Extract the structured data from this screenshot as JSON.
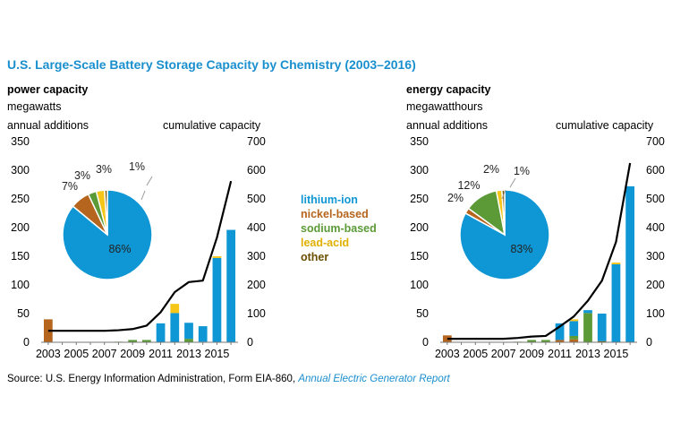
{
  "title": "U.S. Large-Scale Battery Storage Capacity by Chemistry (2003–2016)",
  "colors": {
    "lithium-ion": "#0f96d4",
    "nickel-based": "#b5651d",
    "sodium-based": "#5b9a36",
    "lead-acid": "#f5c518",
    "other": "#7a5a00",
    "line": "#000000"
  },
  "legend": {
    "items": [
      {
        "label": "lithium-ion",
        "color": "#0f96d4"
      },
      {
        "label": "nickel-based",
        "color": "#b5651d"
      },
      {
        "label": "sodium-based",
        "color": "#5b9a36"
      },
      {
        "label": "lead-acid",
        "color": "#f5c518"
      },
      {
        "label": "other",
        "color": "#7a5a00"
      }
    ]
  },
  "left": {
    "title": "power capacity",
    "unit": "megawatts",
    "left_axis_label": "annual additions",
    "right_axis_label": "cumulative capacity"
  },
  "right": {
    "title": "energy capacity",
    "unit": "megawatthours",
    "left_axis_label": "annual additions",
    "right_axis_label": "cumulative capacity"
  },
  "source": {
    "prefix": "Source: U.S. Energy Information Administration, Form EIA-860, ",
    "link": "Annual Electric Generator Report"
  },
  "chart_data": [
    {
      "type": "bar",
      "title": "power capacity",
      "ylabel": "megawatts",
      "years": [
        2003,
        2004,
        2005,
        2006,
        2007,
        2008,
        2009,
        2010,
        2011,
        2012,
        2013,
        2014,
        2015,
        2016
      ],
      "xticks": [
        "2003",
        "2005",
        "2007",
        "2009",
        "2011",
        "2013",
        "2015"
      ],
      "ylim": [
        0,
        350
      ],
      "yticks": [
        0,
        50,
        100,
        150,
        200,
        250,
        300,
        350
      ],
      "y2lim": [
        0,
        700
      ],
      "y2ticks": [
        0,
        100,
        200,
        300,
        400,
        500,
        600,
        700
      ],
      "stack_order": [
        "other",
        "nickel-based",
        "sodium-based",
        "lithium-ion",
        "lead-acid"
      ],
      "series": [
        {
          "name": "lithium-ion",
          "values": [
            0,
            0,
            0,
            0,
            0,
            0,
            0,
            0,
            33,
            51,
            28,
            27,
            147,
            196
          ]
        },
        {
          "name": "nickel-based",
          "values": [
            40,
            0,
            0,
            0,
            0,
            0,
            0,
            0,
            0,
            0,
            0,
            0,
            0,
            0
          ]
        },
        {
          "name": "sodium-based",
          "values": [
            0,
            0,
            0,
            0,
            0,
            1,
            4,
            4,
            0,
            0,
            6,
            0,
            0,
            0
          ]
        },
        {
          "name": "lead-acid",
          "values": [
            0,
            0,
            0,
            0,
            0,
            0,
            0,
            0,
            0,
            16,
            0,
            0,
            3,
            0
          ]
        },
        {
          "name": "other",
          "values": [
            0,
            0,
            0,
            0,
            0,
            0,
            0,
            0,
            0,
            0,
            0,
            1,
            0,
            0
          ]
        }
      ],
      "cumulative": [
        40,
        40,
        40,
        40,
        40,
        42,
        46,
        58,
        105,
        175,
        210,
        215,
        365,
        562
      ],
      "pie": {
        "values": [
          86,
          7,
          3,
          3,
          1
        ],
        "labels": [
          "86%",
          "7%",
          "3%",
          "3%",
          "1%"
        ]
      }
    },
    {
      "type": "bar",
      "title": "energy capacity",
      "ylabel": "megawatthours",
      "years": [
        2003,
        2004,
        2005,
        2006,
        2007,
        2008,
        2009,
        2010,
        2011,
        2012,
        2013,
        2014,
        2015,
        2016
      ],
      "xticks": [
        "2003",
        "2005",
        "2007",
        "2009",
        "2011",
        "2013",
        "2015"
      ],
      "ylim": [
        0,
        350
      ],
      "yticks": [
        0,
        50,
        100,
        150,
        200,
        250,
        300,
        350
      ],
      "y2lim": [
        0,
        700
      ],
      "y2ticks": [
        0,
        100,
        200,
        300,
        400,
        500,
        600,
        700
      ],
      "stack_order": [
        "other",
        "nickel-based",
        "sodium-based",
        "lithium-ion",
        "lead-acid"
      ],
      "series": [
        {
          "name": "lithium-ion",
          "values": [
            0,
            0,
            0,
            0,
            0,
            0,
            0,
            0,
            29,
            26,
            5,
            48,
            136,
            272
          ]
        },
        {
          "name": "nickel-based",
          "values": [
            12,
            0,
            0,
            0,
            0,
            0,
            0,
            0,
            4,
            5,
            0,
            0,
            0,
            0
          ]
        },
        {
          "name": "sodium-based",
          "values": [
            0,
            0,
            0,
            0,
            0,
            1,
            4,
            4,
            0,
            6,
            51,
            0,
            0,
            0
          ]
        },
        {
          "name": "lead-acid",
          "values": [
            0,
            0,
            0,
            0,
            0,
            0,
            0,
            0,
            0,
            3,
            0,
            0,
            3,
            0
          ]
        },
        {
          "name": "other",
          "values": [
            0,
            0,
            0,
            0,
            0,
            0,
            0,
            0,
            0,
            0,
            0,
            2,
            0,
            0
          ]
        }
      ],
      "cumulative": [
        12,
        12,
        12,
        12,
        12,
        15,
        20,
        22,
        55,
        90,
        145,
        215,
        350,
        625
      ],
      "pie": {
        "values": [
          83,
          2,
          12,
          2,
          1
        ],
        "labels": [
          "83%",
          "2%",
          "12%",
          "2%",
          "1%"
        ]
      }
    }
  ]
}
